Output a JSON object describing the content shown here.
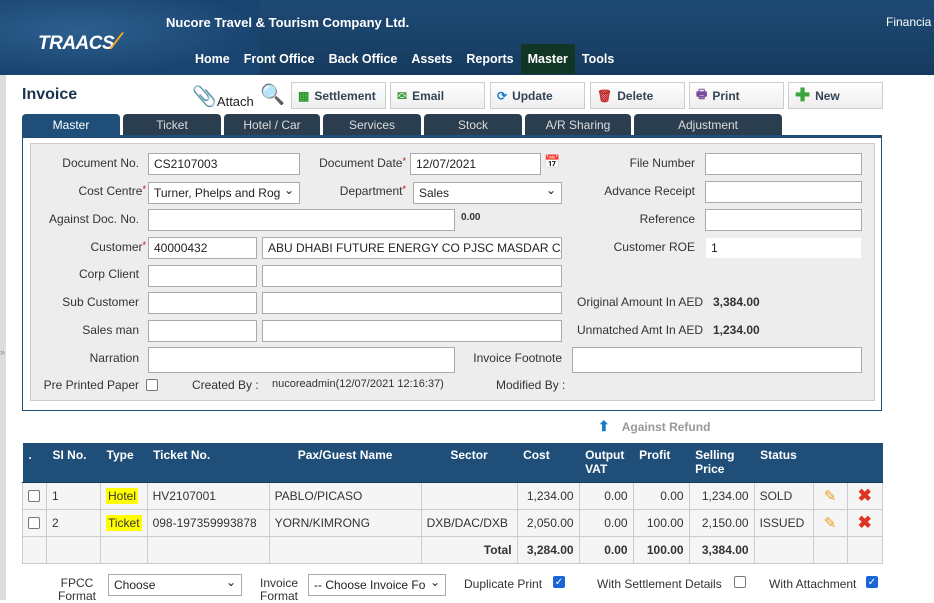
{
  "header": {
    "logo": "TRAACS",
    "company": "Nucore Travel & Tourism Company Ltd.",
    "financial": "Financia"
  },
  "nav": [
    "Home",
    "Front Office",
    "Back Office",
    "Assets",
    "Reports",
    "Master",
    "Tools"
  ],
  "nav_active": "Master",
  "page_title": "Invoice",
  "toolbar": {
    "attach": "Attach",
    "settlement": "Settlement",
    "email": "Email",
    "update": "Update",
    "delete": "Delete",
    "print": "Print",
    "new": "New"
  },
  "tabs": [
    "Master",
    "Ticket",
    "Hotel / Car",
    "Services",
    "Stock",
    "A/R Sharing",
    "Adjustment"
  ],
  "form": {
    "document_no": {
      "label": "Document No.",
      "value": "CS2107003"
    },
    "document_date": {
      "label": "Document Date",
      "value": "12/07/2021"
    },
    "file_number": {
      "label": "File Number",
      "value": ""
    },
    "cost_centre": {
      "label": "Cost Centre",
      "value": "Turner, Phelps and Rog"
    },
    "department": {
      "label": "Department",
      "value": "Sales"
    },
    "advance_receipt": {
      "label": "Advance Receipt",
      "value": ""
    },
    "against_doc_no": {
      "label": "Against Doc. No.",
      "value": "",
      "amount": "0.00"
    },
    "reference": {
      "label": "Reference",
      "value": ""
    },
    "customer": {
      "label": "Customer",
      "code": "40000432",
      "name": "ABU DHABI FUTURE ENERGY CO PJSC MASDAR CA"
    },
    "customer_roe": {
      "label": "Customer ROE",
      "value": "1"
    },
    "corp_client": {
      "label": "Corp Client"
    },
    "sub_customer": {
      "label": "Sub Customer"
    },
    "sales_man": {
      "label": "Sales man"
    },
    "original_amount": {
      "label": "Original Amount In AED",
      "value": "3,384.00"
    },
    "unmatched_amt": {
      "label": "Unmatched Amt In AED",
      "value": "1,234.00"
    },
    "narration": {
      "label": "Narration"
    },
    "invoice_footnote": {
      "label": "Invoice Footnote"
    },
    "pre_printed_paper": {
      "label": "Pre Printed Paper",
      "checked": false
    },
    "created_by": {
      "label": "Created By :",
      "value": "nucoreadmin(12/07/2021 12:16:37)"
    },
    "modified_by": {
      "label": "Modified By :"
    }
  },
  "against_refund": "Against Refund",
  "table": {
    "headers": [
      ".",
      "SI No.",
      "Type",
      "Ticket No.",
      "Pax/Guest Name",
      "Sector",
      "Cost",
      "Output VAT",
      "Profit",
      "Selling Price",
      "Status"
    ],
    "rows": [
      {
        "si": "1",
        "type": "Hotel",
        "ticket": "HV2107001",
        "pax": "PABLO/PICASO",
        "sector": "",
        "cost": "1,234.00",
        "vat": "0.00",
        "profit": "0.00",
        "selling": "1,234.00",
        "status": "SOLD"
      },
      {
        "si": "2",
        "type": "Ticket",
        "ticket": "098-197359993878",
        "pax": "YORN/KIMRONG",
        "sector": "DXB/DAC/DXB",
        "cost": "2,050.00",
        "vat": "0.00",
        "profit": "100.00",
        "selling": "2,150.00",
        "status": "ISSUED"
      }
    ],
    "total": {
      "label": "Total",
      "cost": "3,284.00",
      "vat": "0.00",
      "profit": "100.00",
      "selling": "3,384.00"
    }
  },
  "footer": {
    "fpcc_label": "FPCC Format",
    "fpcc_value": "Choose",
    "invoice_format_label": "Invoice Format",
    "invoice_format_value": "-- Choose Invoice Fo",
    "duplicate_print": "Duplicate Print",
    "duplicate_checked": true,
    "with_settlement": "With Settlement Details",
    "settlement_checked": false,
    "with_attachment": "With Attachment",
    "attachment_checked": true
  }
}
